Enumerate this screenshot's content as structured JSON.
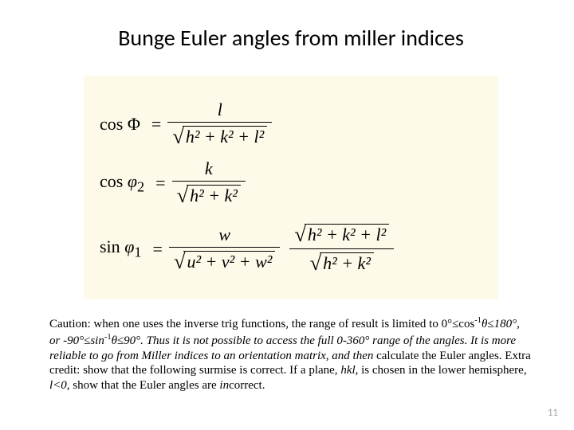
{
  "title": "Bunge Euler angles from miller indices",
  "formula_box": {
    "background_color": "#fdfae9",
    "formulas": {
      "f1": {
        "lhs_op": "cos",
        "lhs_sym": "Φ",
        "num": "l",
        "den_radicand": "h² + k² + l²"
      },
      "f2": {
        "lhs_op": "cos",
        "lhs_sym": "φ",
        "lhs_sub": "2",
        "num": "k",
        "den_radicand": "h² + k²"
      },
      "f3": {
        "lhs_op": "sin",
        "lhs_sym": "φ",
        "lhs_sub": "1",
        "frac1_num": "w",
        "frac1_den_radicand": "u² + v² + w²",
        "frac2_num_radicand": "h² + k² + l²",
        "frac2_den_radicand": "h² + k²"
      }
    }
  },
  "caution": {
    "lead": "Caution: when one uses the inverse trig functions, the range of result is limited to 0°≤cos",
    "sup1": "-1",
    "theta_le_180": "θ≤180°, or -90°≤sin",
    "sup2": "-1",
    "after_sin": "θ≤90°.  Thus it is not possible to access the full 0-360° range of the angles.  It is more reliable to go from Miller indices to an orientation matrix, and ",
    "then_word": "then",
    "after_then": " calculate the Euler angles.  Extra credit: show that the following surmise is correct.  If a plane, ",
    "hkl_word": "hkl",
    "after_hkl": ", is chosen in the lower hemisphere, ",
    "l_lt_0": "l<0",
    "after_l": ", show that the Euler angles are ",
    "in_word": "in",
    "correct_word": "correct."
  },
  "page_number": "11"
}
